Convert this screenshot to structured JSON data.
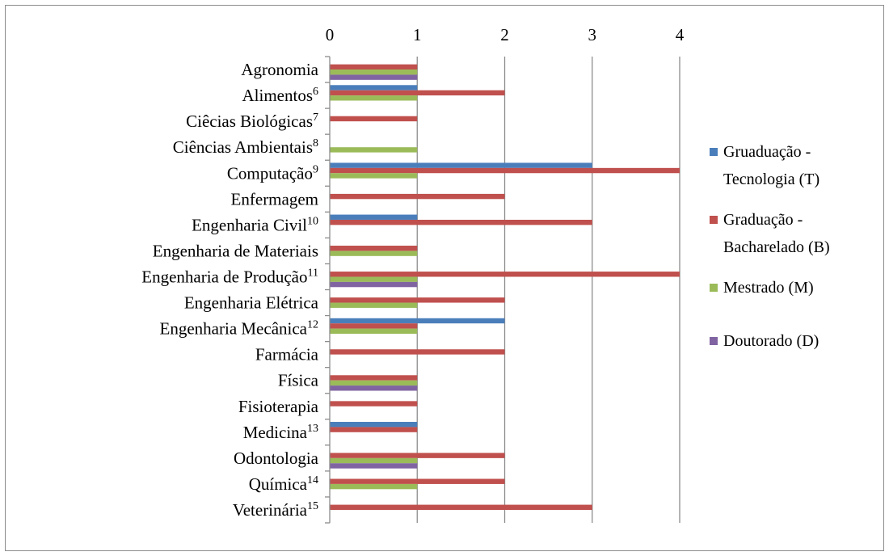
{
  "chart_data": {
    "type": "bar",
    "orientation": "horizontal",
    "xlim": [
      0,
      4
    ],
    "x_ticks": [
      "0",
      "1",
      "2",
      "3",
      "4"
    ],
    "grid": true,
    "legend_position": "right",
    "categories": [
      {
        "label": "Agronomia",
        "sup": ""
      },
      {
        "label": "Alimentos",
        "sup": "6"
      },
      {
        "label": "Ciêcias  Biológicas",
        "sup": "7"
      },
      {
        "label": "Ciências  Ambientais",
        "sup": "8"
      },
      {
        "label": "Computação",
        "sup": "9"
      },
      {
        "label": "Enfermagem",
        "sup": ""
      },
      {
        "label": "Engenharia Civil",
        "sup": "10"
      },
      {
        "label": "Engenharia de Materiais",
        "sup": ""
      },
      {
        "label": "Engenharia de Produção",
        "sup": "11"
      },
      {
        "label": "Engenharia Elétrica",
        "sup": ""
      },
      {
        "label": "Engenharia Mecânica",
        "sup": "12"
      },
      {
        "label": "Farmácia",
        "sup": ""
      },
      {
        "label": "Física",
        "sup": ""
      },
      {
        "label": "Fisioterapia",
        "sup": ""
      },
      {
        "label": "Medicina",
        "sup": "13"
      },
      {
        "label": "Odontologia",
        "sup": ""
      },
      {
        "label": "Química",
        "sup": "14"
      },
      {
        "label": "Veterinária",
        "sup": "15"
      }
    ],
    "series": [
      {
        "name_lines": [
          "Gruaduação -",
          "Tecnologia (T)"
        ],
        "color": "#4a7ebb",
        "values": [
          0,
          1,
          0,
          0,
          3,
          0,
          1,
          0,
          0,
          0,
          2,
          0,
          0,
          0,
          1,
          0,
          0,
          0
        ]
      },
      {
        "name_lines": [
          "Graduação -",
          "Bacharelado (B)"
        ],
        "color": "#c0504d",
        "values": [
          1,
          2,
          1,
          0,
          4,
          2,
          3,
          1,
          4,
          2,
          1,
          2,
          1,
          1,
          1,
          2,
          2,
          3
        ]
      },
      {
        "name_lines": [
          "Mestrado (M)"
        ],
        "color": "#9bbb59",
        "values": [
          1,
          1,
          0,
          1,
          1,
          0,
          0,
          1,
          1,
          1,
          1,
          0,
          1,
          0,
          0,
          1,
          1,
          0
        ]
      },
      {
        "name_lines": [
          "Doutorado (D)"
        ],
        "color": "#8064a2",
        "values": [
          1,
          0,
          0,
          0,
          0,
          0,
          0,
          0,
          1,
          0,
          0,
          0,
          1,
          0,
          0,
          1,
          0,
          0
        ]
      }
    ]
  }
}
